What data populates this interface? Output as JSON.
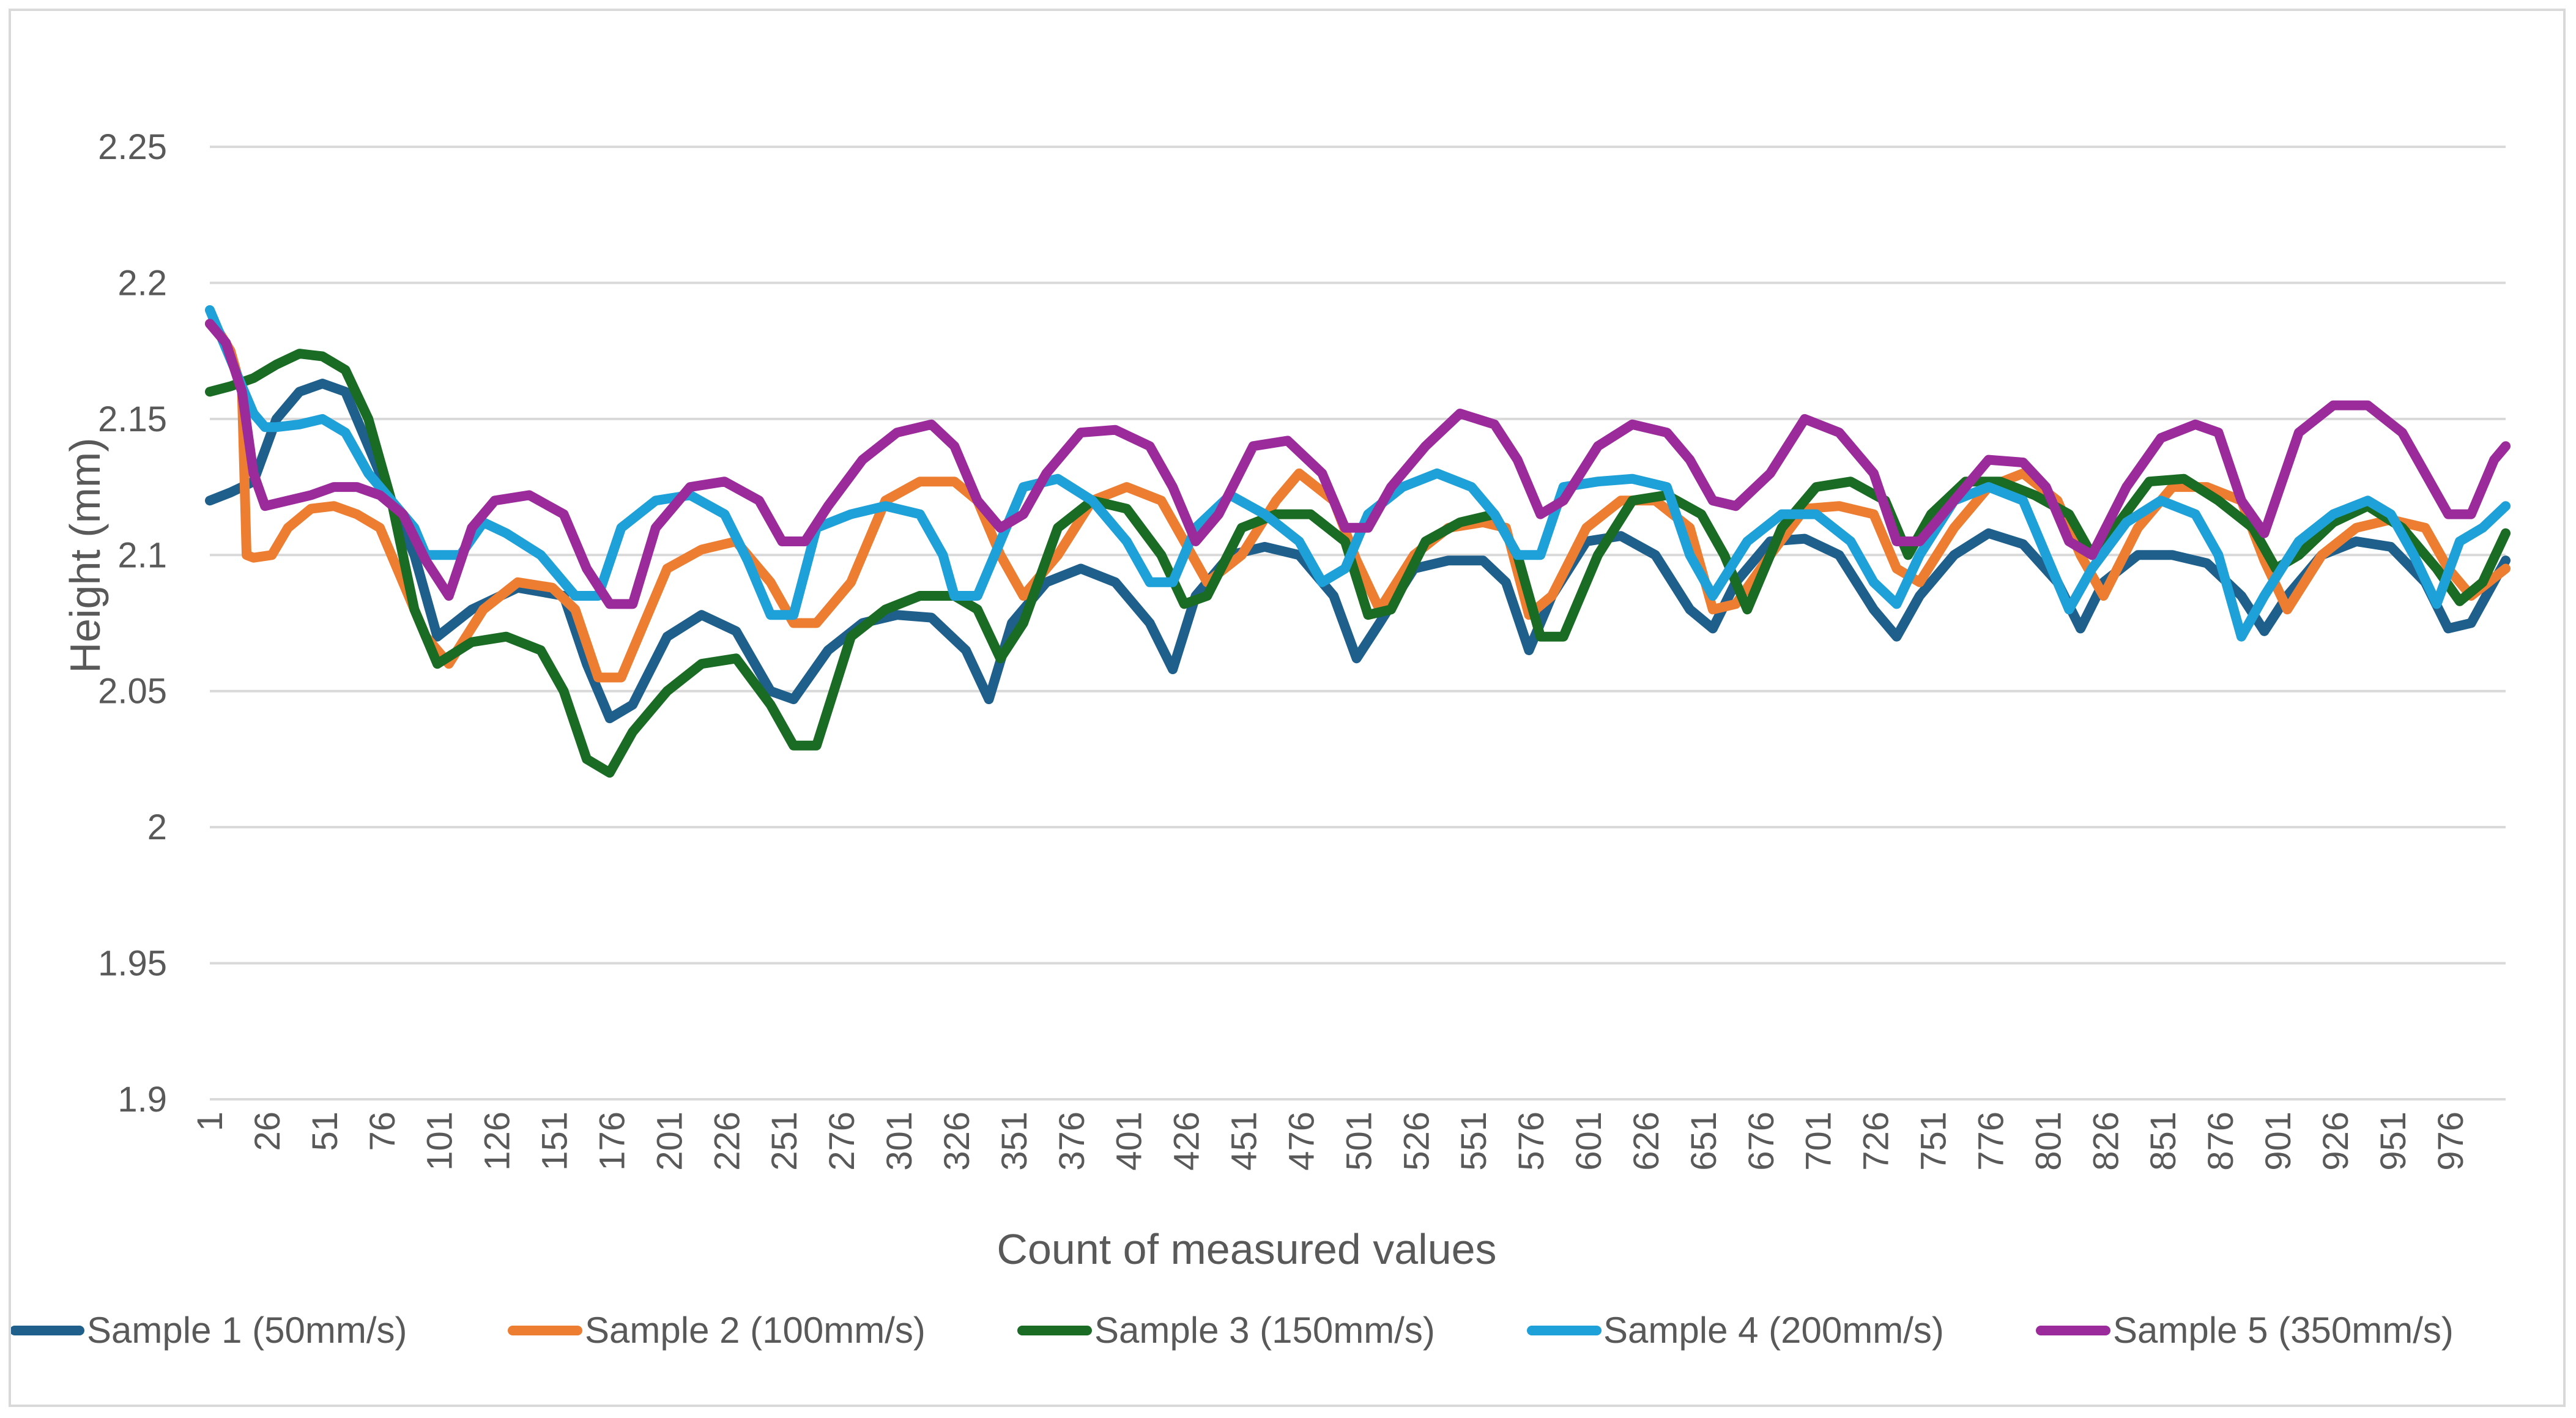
{
  "chart_data": {
    "type": "line",
    "title": "",
    "xlabel": "Count of measured values",
    "ylabel": "Height (mm)",
    "ylim": [
      1.9,
      2.25
    ],
    "xlim": [
      1,
      1000
    ],
    "grid": "horizontal",
    "legend_position": "bottom",
    "yticks": [
      "1.9",
      "1.95",
      "2",
      "2.05",
      "2.1",
      "2.15",
      "2.2",
      "2.25"
    ],
    "ytick_values": [
      1.9,
      1.95,
      2.0,
      2.05,
      2.1,
      2.15,
      2.2,
      2.25
    ],
    "xticks": [
      "1",
      "26",
      "51",
      "76",
      "101",
      "126",
      "151",
      "176",
      "201",
      "226",
      "251",
      "276",
      "301",
      "326",
      "351",
      "376",
      "401",
      "426",
      "451",
      "476",
      "501",
      "526",
      "551",
      "576",
      "601",
      "626",
      "651",
      "676",
      "701",
      "726",
      "751",
      "776",
      "801",
      "826",
      "851",
      "876",
      "901",
      "926",
      "951",
      "976"
    ],
    "xtick_values": [
      1,
      26,
      51,
      76,
      101,
      126,
      151,
      176,
      201,
      226,
      251,
      276,
      301,
      326,
      351,
      376,
      401,
      426,
      451,
      476,
      501,
      526,
      551,
      576,
      601,
      626,
      651,
      676,
      701,
      726,
      751,
      776,
      801,
      826,
      851,
      876,
      901,
      926,
      951,
      976
    ],
    "series": [
      {
        "name": "Sample 1 (50mm/s)",
        "color": "#1f5f8b",
        "x": [
          1,
          10,
          20,
          30,
          40,
          50,
          60,
          70,
          80,
          90,
          100,
          115,
          135,
          155,
          165,
          175,
          185,
          200,
          215,
          230,
          245,
          255,
          270,
          285,
          300,
          315,
          330,
          340,
          350,
          365,
          380,
          395,
          410,
          420,
          430,
          445,
          460,
          475,
          490,
          500,
          510,
          525,
          540,
          555,
          565,
          575,
          585,
          600,
          615,
          630,
          645,
          655,
          665,
          680,
          695,
          710,
          725,
          735,
          745,
          760,
          775,
          790,
          805,
          815,
          825,
          840,
          855,
          870,
          885,
          895,
          905,
          920,
          935,
          950,
          965,
          975,
          985,
          1000
        ],
        "y": [
          2.12,
          2.123,
          2.127,
          2.15,
          2.16,
          2.163,
          2.16,
          2.14,
          2.12,
          2.1,
          2.07,
          2.08,
          2.088,
          2.085,
          2.06,
          2.04,
          2.045,
          2.07,
          2.078,
          2.072,
          2.05,
          2.047,
          2.065,
          2.075,
          2.078,
          2.077,
          2.065,
          2.047,
          2.075,
          2.09,
          2.095,
          2.09,
          2.075,
          2.058,
          2.085,
          2.1,
          2.103,
          2.1,
          2.085,
          2.062,
          2.075,
          2.095,
          2.098,
          2.098,
          2.09,
          2.065,
          2.085,
          2.105,
          2.107,
          2.1,
          2.08,
          2.073,
          2.09,
          2.105,
          2.106,
          2.1,
          2.08,
          2.07,
          2.085,
          2.1,
          2.108,
          2.104,
          2.09,
          2.073,
          2.09,
          2.1,
          2.1,
          2.097,
          2.085,
          2.072,
          2.085,
          2.1,
          2.105,
          2.103,
          2.09,
          2.073,
          2.075,
          2.098
        ]
      },
      {
        "name": "Sample 2 (100mm/s)",
        "color": "#ed7d31",
        "x": [
          1,
          5,
          10,
          15,
          17,
          20,
          28,
          35,
          45,
          55,
          65,
          75,
          85,
          95,
          105,
          120,
          135,
          150,
          160,
          170,
          180,
          190,
          200,
          215,
          230,
          245,
          255,
          265,
          280,
          295,
          310,
          325,
          335,
          345,
          355,
          370,
          385,
          400,
          415,
          425,
          435,
          450,
          465,
          475,
          490,
          500,
          510,
          525,
          540,
          555,
          565,
          575,
          585,
          600,
          615,
          630,
          645,
          655,
          665,
          680,
          695,
          710,
          725,
          735,
          745,
          760,
          775,
          790,
          805,
          815,
          825,
          840,
          855,
          870,
          885,
          895,
          905,
          920,
          935,
          950,
          965,
          975,
          985,
          1000
        ],
        "y": [
          2.185,
          2.182,
          2.175,
          2.16,
          2.1,
          2.099,
          2.1,
          2.11,
          2.117,
          2.118,
          2.115,
          2.11,
          2.09,
          2.07,
          2.06,
          2.08,
          2.09,
          2.088,
          2.08,
          2.055,
          2.055,
          2.075,
          2.095,
          2.102,
          2.105,
          2.09,
          2.075,
          2.075,
          2.09,
          2.12,
          2.127,
          2.127,
          2.12,
          2.1,
          2.085,
          2.1,
          2.12,
          2.125,
          2.12,
          2.105,
          2.09,
          2.1,
          2.12,
          2.13,
          2.12,
          2.098,
          2.08,
          2.1,
          2.11,
          2.112,
          2.11,
          2.078,
          2.085,
          2.11,
          2.12,
          2.12,
          2.11,
          2.08,
          2.082,
          2.1,
          2.117,
          2.118,
          2.115,
          2.095,
          2.09,
          2.11,
          2.125,
          2.13,
          2.12,
          2.1,
          2.085,
          2.11,
          2.125,
          2.125,
          2.12,
          2.098,
          2.08,
          2.1,
          2.11,
          2.113,
          2.11,
          2.095,
          2.085,
          2.095
        ]
      },
      {
        "name": "Sample 3 (150mm/s)",
        "color": "#1a6b24",
        "x": [
          1,
          10,
          20,
          30,
          40,
          50,
          60,
          70,
          80,
          90,
          100,
          115,
          130,
          145,
          155,
          165,
          175,
          185,
          200,
          215,
          230,
          245,
          255,
          265,
          280,
          295,
          310,
          325,
          335,
          345,
          355,
          370,
          385,
          400,
          415,
          425,
          435,
          450,
          465,
          480,
          495,
          505,
          515,
          530,
          545,
          560,
          570,
          580,
          590,
          605,
          620,
          635,
          650,
          660,
          670,
          685,
          700,
          715,
          730,
          740,
          750,
          765,
          780,
          795,
          810,
          820,
          830,
          845,
          860,
          875,
          890,
          900,
          910,
          925,
          940,
          955,
          970,
          980,
          990,
          1000
        ],
        "y": [
          2.16,
          2.162,
          2.165,
          2.17,
          2.174,
          2.173,
          2.168,
          2.15,
          2.12,
          2.08,
          2.06,
          2.068,
          2.07,
          2.065,
          2.05,
          2.025,
          2.02,
          2.035,
          2.05,
          2.06,
          2.062,
          2.045,
          2.03,
          2.03,
          2.07,
          2.08,
          2.085,
          2.085,
          2.08,
          2.062,
          2.075,
          2.11,
          2.12,
          2.117,
          2.1,
          2.082,
          2.085,
          2.11,
          2.115,
          2.115,
          2.105,
          2.078,
          2.08,
          2.105,
          2.112,
          2.115,
          2.1,
          2.07,
          2.07,
          2.1,
          2.12,
          2.122,
          2.115,
          2.1,
          2.08,
          2.11,
          2.125,
          2.127,
          2.12,
          2.1,
          2.115,
          2.127,
          2.127,
          2.122,
          2.115,
          2.1,
          2.11,
          2.127,
          2.128,
          2.12,
          2.11,
          2.095,
          2.1,
          2.112,
          2.118,
          2.11,
          2.095,
          2.083,
          2.09,
          2.108
        ]
      },
      {
        "name": "Sample 4 (200mm/s)",
        "color": "#1ea0d8",
        "x": [
          1,
          10,
          20,
          25,
          30,
          40,
          50,
          60,
          70,
          80,
          90,
          95,
          100,
          110,
          120,
          130,
          145,
          160,
          170,
          180,
          195,
          210,
          225,
          235,
          245,
          255,
          265,
          280,
          295,
          310,
          320,
          325,
          335,
          345,
          355,
          370,
          385,
          400,
          410,
          420,
          430,
          445,
          460,
          475,
          485,
          495,
          505,
          520,
          535,
          550,
          560,
          570,
          580,
          590,
          605,
          620,
          635,
          645,
          655,
          670,
          685,
          700,
          715,
          725,
          735,
          745,
          760,
          775,
          790,
          800,
          810,
          820,
          835,
          850,
          865,
          875,
          885,
          895,
          910,
          925,
          940,
          950,
          960,
          970,
          980,
          990,
          1000
        ],
        "y": [
          2.19,
          2.172,
          2.152,
          2.147,
          2.147,
          2.148,
          2.15,
          2.145,
          2.13,
          2.12,
          2.11,
          2.1,
          2.1,
          2.1,
          2.112,
          2.108,
          2.1,
          2.085,
          2.085,
          2.11,
          2.12,
          2.122,
          2.115,
          2.098,
          2.078,
          2.078,
          2.11,
          2.115,
          2.118,
          2.115,
          2.1,
          2.085,
          2.085,
          2.105,
          2.125,
          2.128,
          2.12,
          2.105,
          2.09,
          2.09,
          2.11,
          2.122,
          2.115,
          2.105,
          2.09,
          2.095,
          2.115,
          2.125,
          2.13,
          2.125,
          2.115,
          2.1,
          2.1,
          2.125,
          2.127,
          2.128,
          2.125,
          2.1,
          2.085,
          2.105,
          2.115,
          2.115,
          2.105,
          2.09,
          2.082,
          2.1,
          2.12,
          2.125,
          2.12,
          2.1,
          2.08,
          2.095,
          2.112,
          2.12,
          2.115,
          2.1,
          2.07,
          2.085,
          2.105,
          2.115,
          2.12,
          2.115,
          2.1,
          2.082,
          2.105,
          2.11,
          2.118
        ]
      },
      {
        "name": "Sample 5 (350mm/s)",
        "color": "#9b2a9b",
        "x": [
          1,
          8,
          15,
          20,
          25,
          35,
          45,
          55,
          65,
          75,
          85,
          95,
          105,
          115,
          125,
          140,
          155,
          165,
          175,
          185,
          195,
          210,
          225,
          240,
          250,
          260,
          270,
          285,
          300,
          315,
          325,
          335,
          345,
          355,
          365,
          380,
          395,
          410,
          420,
          430,
          440,
          455,
          470,
          485,
          495,
          505,
          515,
          530,
          545,
          560,
          570,
          580,
          590,
          605,
          620,
          635,
          645,
          655,
          665,
          680,
          695,
          710,
          725,
          735,
          745,
          760,
          775,
          790,
          800,
          810,
          820,
          835,
          850,
          865,
          875,
          885,
          895,
          910,
          925,
          940,
          955,
          965,
          975,
          985,
          995,
          1000
        ],
        "y": [
          2.185,
          2.178,
          2.16,
          2.13,
          2.118,
          2.12,
          2.122,
          2.125,
          2.125,
          2.122,
          2.115,
          2.098,
          2.085,
          2.11,
          2.12,
          2.122,
          2.115,
          2.095,
          2.082,
          2.082,
          2.11,
          2.125,
          2.127,
          2.12,
          2.105,
          2.105,
          2.118,
          2.135,
          2.145,
          2.148,
          2.14,
          2.12,
          2.11,
          2.115,
          2.13,
          2.145,
          2.146,
          2.14,
          2.125,
          2.105,
          2.115,
          2.14,
          2.142,
          2.13,
          2.11,
          2.11,
          2.125,
          2.14,
          2.152,
          2.148,
          2.135,
          2.115,
          2.12,
          2.14,
          2.148,
          2.145,
          2.135,
          2.12,
          2.118,
          2.13,
          2.15,
          2.145,
          2.13,
          2.105,
          2.105,
          2.12,
          2.135,
          2.134,
          2.125,
          2.105,
          2.1,
          2.125,
          2.143,
          2.148,
          2.145,
          2.12,
          2.108,
          2.145,
          2.155,
          2.155,
          2.145,
          2.13,
          2.115,
          2.115,
          2.135,
          2.14
        ]
      }
    ]
  }
}
